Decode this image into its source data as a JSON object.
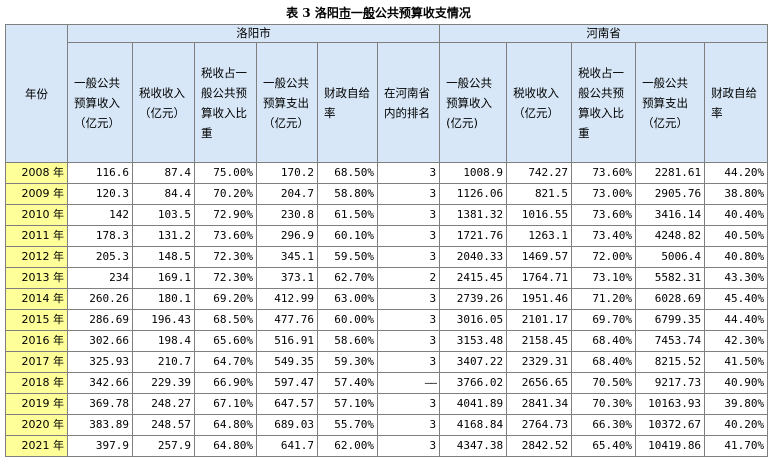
{
  "title": {
    "prefix": "表 3 洛阳",
    "u1": "市",
    "mid": "一",
    "u2": "般",
    "suffix": "公共预算收支情况"
  },
  "header": {
    "year": "年份",
    "group_luoyang": "洛阳市",
    "group_henan": "河南省",
    "cols": [
      "一般公共预算收入（亿元）",
      "税收收入（亿元）",
      "税收占一般公共预算收入比重",
      "一般公共预算支出（亿元）",
      "财政自给率",
      "在河南省内的排名",
      "一般公共预算收入(亿元)",
      "税收收入（亿元）",
      "税收占一般公共预算收入比重",
      "一般公共预算支出（亿元）",
      "财政自给率"
    ]
  },
  "rows": [
    {
      "year": "2008 年",
      "v": [
        "116.6",
        "87.4",
        "75.00%",
        "170.2",
        "68.50%",
        "3",
        "1008.9",
        "742.27",
        "73.60%",
        "2281.61",
        "44.20%"
      ]
    },
    {
      "year": "2009 年",
      "v": [
        "120.3",
        "84.4",
        "70.20%",
        "204.7",
        "58.80%",
        "3",
        "1126.06",
        "821.5",
        "73.00%",
        "2905.76",
        "38.80%"
      ]
    },
    {
      "year": "2010 年",
      "v": [
        "142",
        "103.5",
        "72.90%",
        "230.8",
        "61.50%",
        "3",
        "1381.32",
        "1016.55",
        "73.60%",
        "3416.14",
        "40.40%"
      ]
    },
    {
      "year": "2011 年",
      "v": [
        "178.3",
        "131.2",
        "73.60%",
        "296.9",
        "60.10%",
        "3",
        "1721.76",
        "1263.1",
        "73.40%",
        "4248.82",
        "40.50%"
      ]
    },
    {
      "year": "2012 年",
      "v": [
        "205.3",
        "148.5",
        "72.30%",
        "345.1",
        "59.50%",
        "3",
        "2040.33",
        "1469.57",
        "72.00%",
        "5006.4",
        "40.80%"
      ]
    },
    {
      "year": "2013 年",
      "v": [
        "234",
        "169.1",
        "72.30%",
        "373.1",
        "62.70%",
        "2",
        "2415.45",
        "1764.71",
        "73.10%",
        "5582.31",
        "43.30%"
      ]
    },
    {
      "year": "2014 年",
      "v": [
        "260.26",
        "180.1",
        "69.20%",
        "412.99",
        "63.00%",
        "3",
        "2739.26",
        "1951.46",
        "71.20%",
        "6028.69",
        "45.40%"
      ]
    },
    {
      "year": "2015 年",
      "v": [
        "286.69",
        "196.43",
        "68.50%",
        "477.76",
        "60.00%",
        "3",
        "3016.05",
        "2101.17",
        "69.70%",
        "6799.35",
        "44.40%"
      ]
    },
    {
      "year": "2016 年",
      "v": [
        "302.66",
        "198.4",
        "65.60%",
        "516.91",
        "58.60%",
        "3",
        "3153.48",
        "2158.45",
        "68.40%",
        "7453.74",
        "42.30%"
      ]
    },
    {
      "year": "2017 年",
      "v": [
        "325.93",
        "210.7",
        "64.70%",
        "549.35",
        "59.30%",
        "3",
        "3407.22",
        "2329.31",
        "68.40%",
        "8215.52",
        "41.50%"
      ]
    },
    {
      "year": "2018 年",
      "v": [
        "342.66",
        "229.39",
        "66.90%",
        "597.47",
        "57.40%",
        "——",
        "3766.02",
        "2656.65",
        "70.50%",
        "9217.73",
        "40.90%"
      ]
    },
    {
      "year": "2019 年",
      "v": [
        "369.78",
        "248.27",
        "67.10%",
        "647.57",
        "57.10%",
        "3",
        "4041.89",
        "2841.34",
        "70.30%",
        "10163.93",
        "39.80%"
      ]
    },
    {
      "year": "2020 年",
      "v": [
        "383.89",
        "248.57",
        "64.80%",
        "689.03",
        "55.70%",
        "3",
        "4168.84",
        "2764.73",
        "66.30%",
        "10372.67",
        "40.20%"
      ]
    },
    {
      "year": "2021 年",
      "v": [
        "397.9",
        "257.9",
        "64.80%",
        "641.7",
        "62.00%",
        "3",
        "4347.38",
        "2842.52",
        "65.40%",
        "10419.86",
        "41.70%"
      ]
    }
  ]
}
